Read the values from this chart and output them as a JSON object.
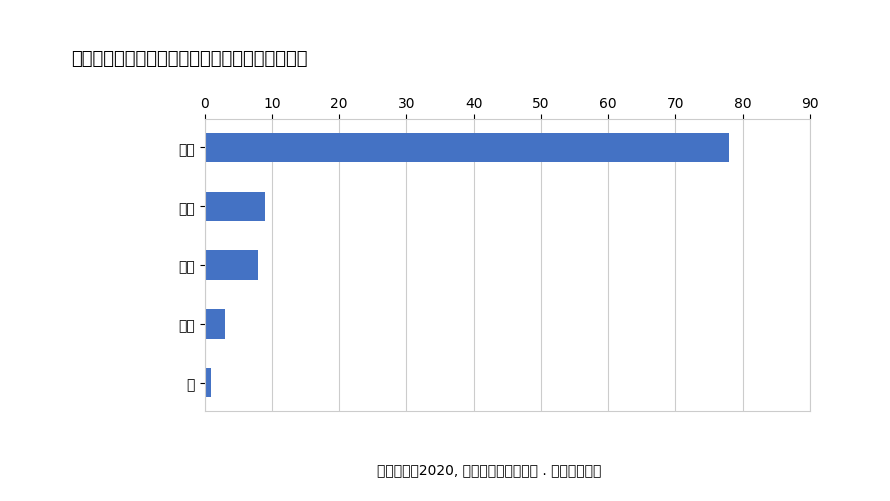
{
  "title": "気象病に関連している気象の要因についての調査",
  "categories": [
    "気圧",
    "天気",
    "湿度",
    "気温",
    "風"
  ],
  "values": [
    78,
    9,
    8,
    3,
    1
  ],
  "bar_color": "#4472C4",
  "xlim": [
    0,
    90
  ],
  "xticks": [
    0,
    10,
    20,
    30,
    40,
    50,
    60,
    70,
    80,
    90
  ],
  "caption": "天気痛調査2020, ウェザーニューズ社 . より引用作成",
  "background_color": "#FFFFFF",
  "chart_bg": "#FFFFFF",
  "border_color": "#CCCCCC",
  "title_fontsize": 13,
  "tick_fontsize": 10,
  "caption_fontsize": 10
}
